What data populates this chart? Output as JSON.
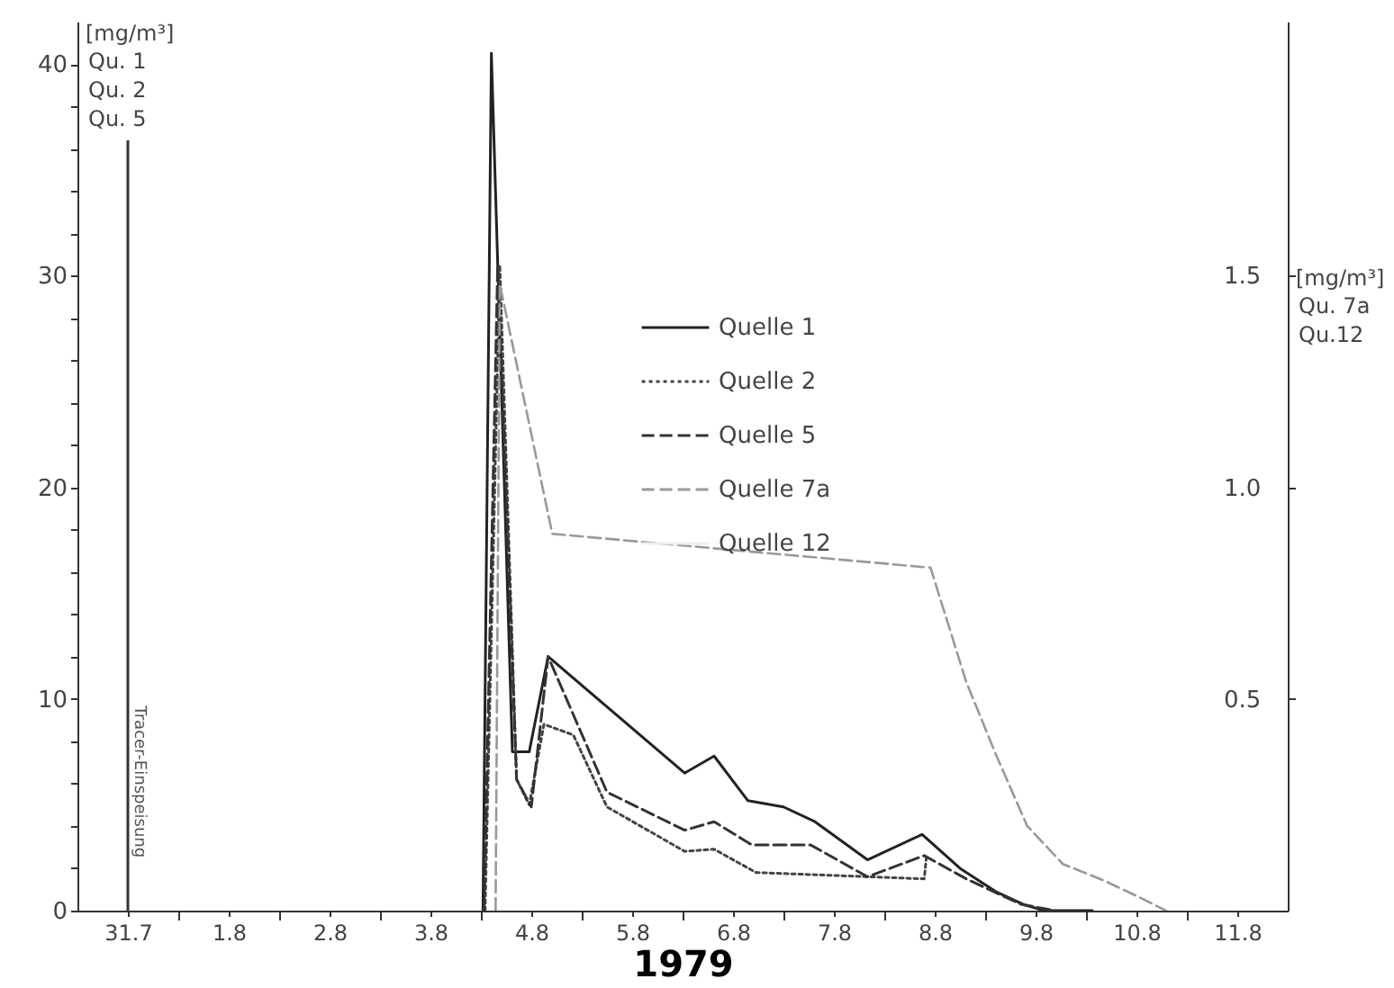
{
  "chart_data": {
    "type": "line",
    "xlabel": "1979",
    "ylabel": "[mg/m³]",
    "y2label": "[mg/m³]",
    "annotations": [
      "Qu. 1",
      "Qu. 2",
      "Qu. 5",
      "Qu. 7a",
      "Qu.12"
    ],
    "series": [
      {
        "name": "Quelle 1",
        "color": "#222222",
        "line_style": "solid",
        "x": [
          "1979-08-04T00:30",
          "1979-08-04T02:30",
          "1979-08-04T07:30",
          "1979-08-04T11:30",
          "1979-08-04T16:00",
          "1979-08-06T00:30",
          "1979-08-06T07:30",
          "1979-08-06T15:30",
          "1979-08-07T00:00",
          "1979-08-07T07:30",
          "1979-08-07T20:00",
          "1979-08-08T09:00",
          "1979-08-08T18:00",
          "1979-08-09T02:30",
          "1979-08-09T09:00",
          "1979-08-09T14:00",
          "1979-08-10T01:30"
        ],
        "values": [
          0,
          40.5,
          7.5,
          7.5,
          12,
          6.5,
          7.3,
          5.2,
          4.9,
          4.2,
          2.4,
          3.6,
          2.0,
          0.9,
          0.3,
          0,
          0
        ]
      },
      {
        "name": "Quelle 2",
        "color": "#444444",
        "line_style": "dotted",
        "x": [
          "1979-08-04T01:00",
          "1979-08-04T04:30",
          "1979-08-04T08:30",
          "1979-08-04T11:30",
          "1979-08-04T15:00",
          "1979-08-04T22:00",
          "1979-08-05T06:00",
          "1979-08-06T00:30",
          "1979-08-06T07:30",
          "1979-08-06T17:30",
          "1979-08-08T09:30",
          "1979-08-08T10:00"
        ],
        "values": [
          0,
          30.5,
          6.2,
          5.0,
          8.8,
          8.3,
          4.9,
          2.8,
          2.9,
          1.8,
          1.5,
          2.5
        ]
      },
      {
        "name": "Quelle 5",
        "color": "#333333",
        "line_style": "dashed",
        "x": [
          "1979-08-04T00:45",
          "1979-08-04T04:00",
          "1979-08-04T08:30",
          "1979-08-04T12:00",
          "1979-08-04T16:00",
          "1979-08-05T06:00",
          "1979-08-06T00:30",
          "1979-08-06T07:30",
          "1979-08-06T16:30",
          "1979-08-07T06:30",
          "1979-08-07T20:00",
          "1979-08-08T09:30",
          "1979-08-08T19:30",
          "1979-08-09T08:30",
          "1979-08-09T16:30"
        ],
        "values": [
          0,
          30.5,
          6.2,
          4.9,
          12,
          5.6,
          3.8,
          4.2,
          3.1,
          3.1,
          1.6,
          2.6,
          1.5,
          0.3,
          0
        ]
      },
      {
        "name": "Quelle 7a",
        "color": "#999999",
        "line_style": "dashed",
        "axis": "y2",
        "x": [
          "1979-08-04T03:30",
          "1979-08-04T04:30",
          "1979-08-04T17:00",
          "1979-08-08T11:00",
          "1979-08-08T19:30",
          "1979-08-09T02:30",
          "1979-08-09T10:00",
          "1979-08-09T18:30",
          "1979-08-10T04:30",
          "1979-08-10T13:00",
          "1979-08-10T19:00"
        ],
        "values": [
          0,
          1.48,
          0.89,
          0.81,
          0.54,
          0.37,
          0.2,
          0.11,
          0.07,
          0.03,
          0
        ]
      },
      {
        "name": "Quelle 12",
        "color": "#eeeeee",
        "line_style": "solid",
        "axis": "y2"
      }
    ],
    "xlim": [
      "1979-07-31T00:00",
      "1979-08-12T00:00"
    ],
    "xticks": [
      {
        "value": "1979-07-31T12:00",
        "label": "31.7"
      },
      {
        "value": "1979-08-01T12:00",
        "label": "1.8"
      },
      {
        "value": "1979-08-02T12:00",
        "label": "2.8"
      },
      {
        "value": "1979-08-03T12:00",
        "label": "3.8"
      },
      {
        "value": "1979-08-04T12:00",
        "label": "4.8"
      },
      {
        "value": "1979-08-05T12:00",
        "label": "5.8"
      },
      {
        "value": "1979-08-06T12:00",
        "label": "6.8"
      },
      {
        "value": "1979-08-07T12:00",
        "label": "7.8"
      },
      {
        "value": "1979-08-08T12:00",
        "label": "8.8"
      },
      {
        "value": "1979-08-09T12:00",
        "label": "9.8"
      },
      {
        "value": "1979-08-10T12:00",
        "label": "10.8"
      },
      {
        "value": "1979-08-11T12:00",
        "label": "11.8"
      },
      {
        "value": "1979-08-01T00:00",
        "label": null
      },
      {
        "value": "1979-08-02T00:00",
        "label": null
      },
      {
        "value": "1979-08-03T00:00",
        "label": null
      },
      {
        "value": "1979-08-04T00:00",
        "label": null
      },
      {
        "value": "1979-08-05T00:00",
        "label": null
      },
      {
        "value": "1979-08-06T00:00",
        "label": null
      },
      {
        "value": "1979-08-07T00:00",
        "label": null
      },
      {
        "value": "1979-08-08T00:00",
        "label": null
      },
      {
        "value": "1979-08-09T00:00",
        "label": null
      },
      {
        "value": "1979-08-10T00:00",
        "label": null
      },
      {
        "value": "1979-08-11T00:00",
        "label": null
      }
    ],
    "ylim": [
      0,
      42
    ],
    "yticks": [
      0,
      {
        "value": 2,
        "label": null
      },
      {
        "value": 4,
        "label": null
      },
      {
        "value": 6,
        "label": null
      },
      {
        "value": 8,
        "label": null
      },
      10,
      {
        "value": 12,
        "label": null
      },
      {
        "value": 14,
        "label": null
      },
      {
        "value": 16,
        "label": null
      },
      {
        "value": 18,
        "label": null
      },
      20,
      {
        "value": 22,
        "label": null
      },
      {
        "value": 24,
        "label": null
      },
      {
        "value": 26,
        "label": null
      },
      {
        "value": 28,
        "label": null
      },
      30,
      {
        "value": 32,
        "label": null
      },
      {
        "value": 34,
        "label": null
      },
      {
        "value": 36,
        "label": null
      },
      {
        "value": 38,
        "label": null
      },
      40
    ],
    "y2lim": [
      0,
      2.1
    ],
    "y2ticks": [
      0.5,
      {
        "value": 1,
        "label": "1.0"
      },
      1.5
    ],
    "ref_lines": [
      {
        "axis": "x",
        "value": "1979-07-31T12:00",
        "label": "Tracer-Einspeisung"
      }
    ],
    "legend": "top"
  }
}
